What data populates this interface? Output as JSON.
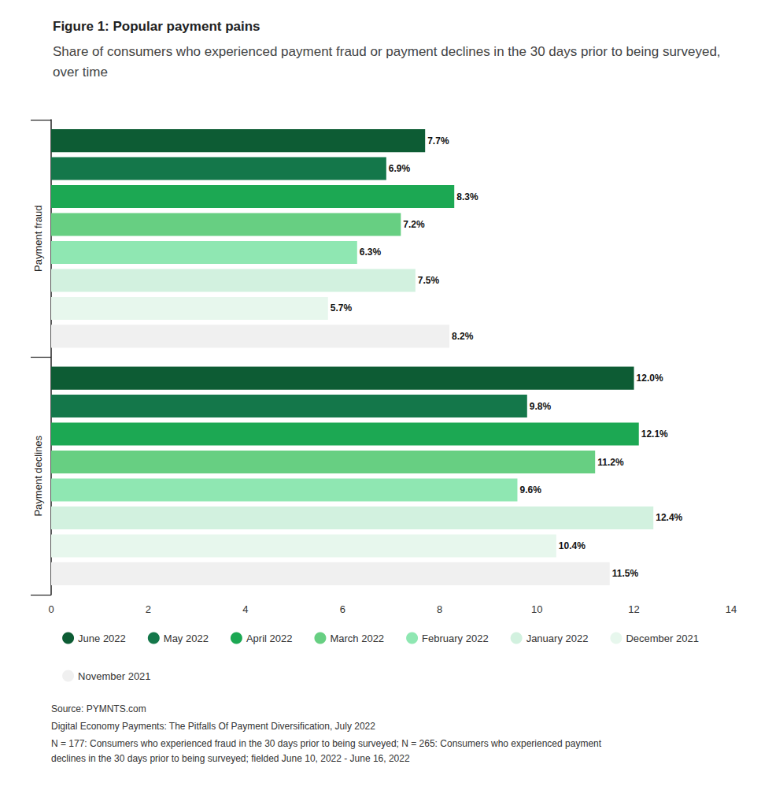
{
  "chart_data": {
    "type": "bar",
    "title": "Figure 1: Popular payment pains",
    "subtitle": "Share of consumers who experienced payment fraud or payment declines in the 30 days prior to being surveyed, over time",
    "orientation": "horizontal",
    "categories": [
      "Payment fraud",
      "Payment declines"
    ],
    "series": [
      {
        "name": "June 2022",
        "color": "#0d5c34",
        "values": [
          7.7,
          12.0
        ],
        "value_labels": [
          "7.7%",
          "12.0%"
        ]
      },
      {
        "name": "May 2022",
        "color": "#14774a",
        "values": [
          6.9,
          9.8
        ],
        "value_labels": [
          "6.9%",
          "9.8%"
        ]
      },
      {
        "name": "April 2022",
        "color": "#1ca853",
        "values": [
          8.3,
          12.1
        ],
        "value_labels": [
          "8.3%",
          "12.1%"
        ]
      },
      {
        "name": "March 2022",
        "color": "#67cf82",
        "values": [
          7.2,
          11.2
        ],
        "value_labels": [
          "7.2%",
          "11.2%"
        ]
      },
      {
        "name": "February 2022",
        "color": "#8fe7b2",
        "values": [
          6.3,
          9.6
        ],
        "value_labels": [
          "6.3%",
          "9.6%"
        ]
      },
      {
        "name": "January 2022",
        "color": "#d2f1df",
        "values": [
          7.5,
          12.4
        ],
        "value_labels": [
          "7.5%",
          "12.4%"
        ]
      },
      {
        "name": "December 2021",
        "color": "#e7f7ed",
        "values": [
          5.7,
          10.4
        ],
        "value_labels": [
          "5.7%",
          "10.4%"
        ]
      },
      {
        "name": "November 2021",
        "color": "#f0f0f0",
        "values": [
          8.2,
          11.5
        ],
        "value_labels": [
          "8.2%",
          "11.5%"
        ]
      }
    ],
    "xlim": [
      0,
      14
    ],
    "xticks": [
      0,
      2,
      4,
      6,
      8,
      10,
      12,
      14
    ],
    "grid": false,
    "legend": "bottom",
    "data_labels": true,
    "annotations": [
      "Source: PYMNTS.com",
      "Digital Economy Payments: The Pitfalls Of Payment Diversification, July 2022",
      "N = 177: Consumers who experienced fraud in the 30 days prior to being surveyed; N = 265: Consumers who experienced payment declines in the 30 days prior to being surveyed; fielded June 10, 2022 - June 16, 2022"
    ]
  }
}
